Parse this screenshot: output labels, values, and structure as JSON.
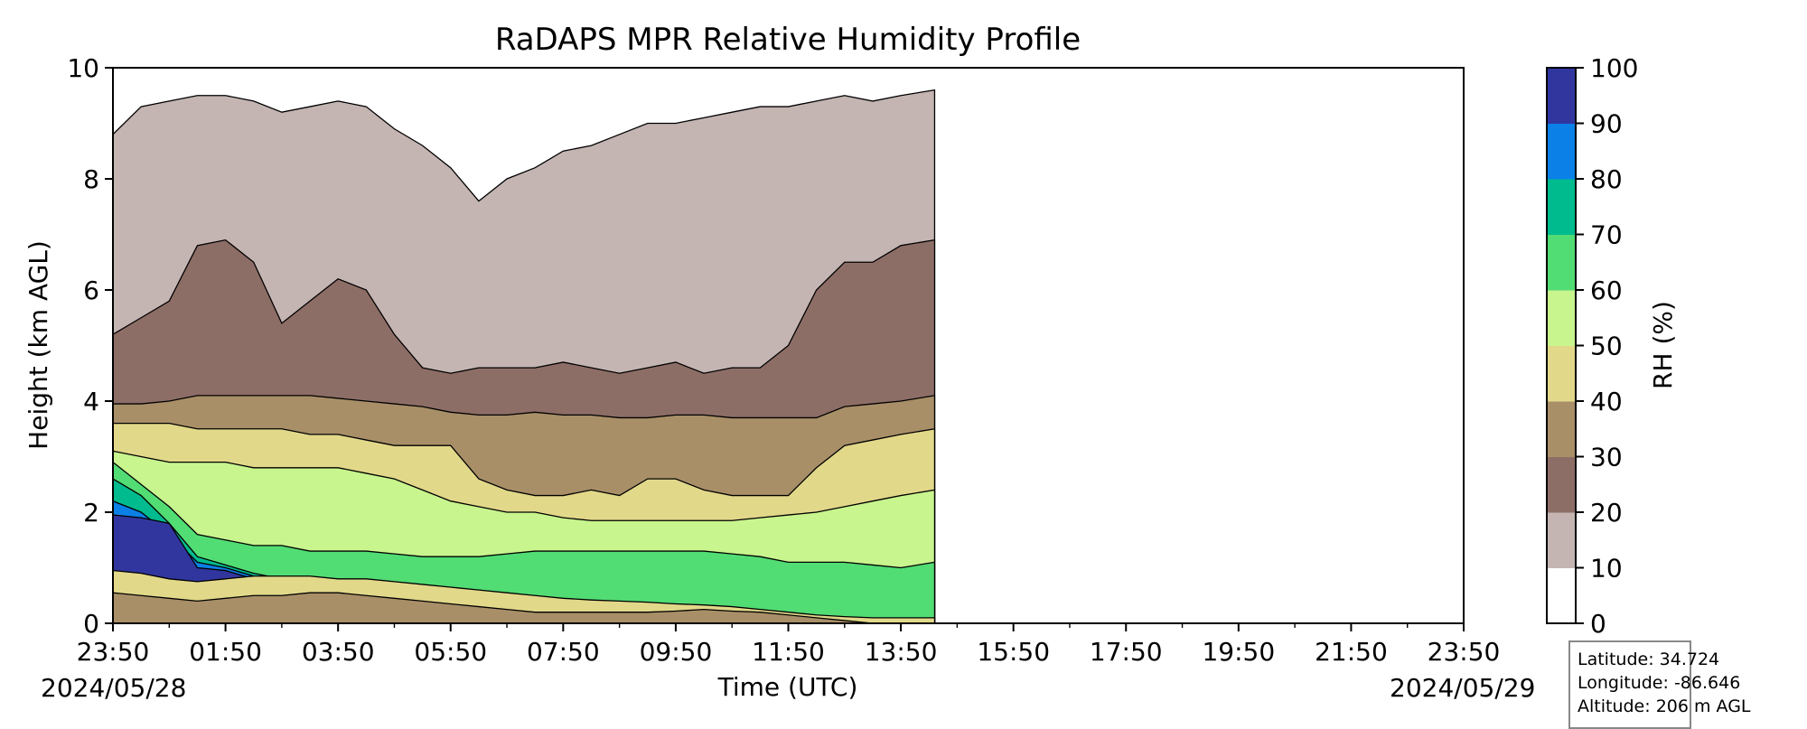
{
  "chart_data": {
    "type": "heatmap",
    "title": "RaDAPS MPR Relative Humidity Profile",
    "xlabel": "Time (UTC)",
    "ylabel": "Height (km AGL)",
    "x_tick_labels": [
      "23:50",
      "01:50",
      "03:50",
      "05:50",
      "07:50",
      "09:50",
      "11:50",
      "13:50",
      "15:50",
      "17:50",
      "19:50",
      "21:50",
      "23:50"
    ],
    "x_range_hours": [
      0,
      24
    ],
    "data_end_hour": 14.6,
    "date_start": "2024/05/28",
    "date_end": "2024/05/29",
    "ylim": [
      0,
      10
    ],
    "y_ticks": [
      0,
      2,
      4,
      6,
      8,
      10
    ],
    "colorbar": {
      "label": "RH (%)",
      "levels": [
        0,
        10,
        20,
        30,
        40,
        50,
        60,
        70,
        80,
        90,
        100
      ],
      "colors": [
        "#ffffff",
        "#c4b5b3",
        "#8d6e66",
        "#a88f68",
        "#e2d88a",
        "#c8f58e",
        "#52dc74",
        "#00bb8e",
        "#0b80e6",
        "#31369f"
      ]
    },
    "time_hours": [
      0,
      0.5,
      1,
      1.5,
      2,
      2.5,
      3,
      3.5,
      4,
      4.5,
      5,
      5.5,
      6,
      6.5,
      7,
      7.5,
      8,
      8.5,
      9,
      9.5,
      10,
      10.5,
      11,
      11.5,
      12,
      12.5,
      13,
      13.5,
      14,
      14.6
    ],
    "boundary_heights_km": {
      "10": [
        8.8,
        9.3,
        9.4,
        9.5,
        9.5,
        9.4,
        9.2,
        9.3,
        9.4,
        9.3,
        8.9,
        8.6,
        8.2,
        7.6,
        8.0,
        8.2,
        8.5,
        8.6,
        8.8,
        9.0,
        9.0,
        9.1,
        9.2,
        9.3,
        9.3,
        9.4,
        9.5,
        9.4,
        9.5,
        9.6
      ],
      "20": [
        5.2,
        5.5,
        5.8,
        6.8,
        6.9,
        6.5,
        5.4,
        5.8,
        6.2,
        6.0,
        5.2,
        4.6,
        4.5,
        4.6,
        4.6,
        4.6,
        4.7,
        4.6,
        4.5,
        4.6,
        4.7,
        4.5,
        4.6,
        4.6,
        5.0,
        6.0,
        6.5,
        6.5,
        6.8,
        6.9
      ],
      "30": [
        3.95,
        3.95,
        4.0,
        4.1,
        4.1,
        4.1,
        4.1,
        4.1,
        4.05,
        4.0,
        3.95,
        3.9,
        3.8,
        3.75,
        3.75,
        3.8,
        3.75,
        3.75,
        3.7,
        3.7,
        3.75,
        3.75,
        3.7,
        3.7,
        3.7,
        3.7,
        3.9,
        3.95,
        4.0,
        4.1
      ],
      "40": [
        3.6,
        3.6,
        3.6,
        3.5,
        3.5,
        3.5,
        3.5,
        3.4,
        3.4,
        3.3,
        3.2,
        3.2,
        3.2,
        2.6,
        2.4,
        2.3,
        2.3,
        2.4,
        2.3,
        2.6,
        2.6,
        2.4,
        2.3,
        2.3,
        2.3,
        2.8,
        3.2,
        3.3,
        3.4,
        3.5
      ],
      "50": [
        3.1,
        3.0,
        2.9,
        2.9,
        2.9,
        2.8,
        2.8,
        2.8,
        2.8,
        2.7,
        2.6,
        2.4,
        2.2,
        2.1,
        2.0,
        2.0,
        1.9,
        1.85,
        1.85,
        1.85,
        1.85,
        1.85,
        1.85,
        1.9,
        1.95,
        2.0,
        2.1,
        2.2,
        2.3,
        2.4
      ],
      "60": [
        2.9,
        2.5,
        2.1,
        1.6,
        1.5,
        1.4,
        1.4,
        1.3,
        1.3,
        1.3,
        1.25,
        1.2,
        1.2,
        1.2,
        1.25,
        1.3,
        1.3,
        1.3,
        1.3,
        1.3,
        1.3,
        1.3,
        1.25,
        1.2,
        1.1,
        1.1,
        1.1,
        1.05,
        1.0,
        1.1
      ],
      "70": [
        2.6,
        2.3,
        1.8,
        1.2,
        1.05,
        0.9,
        0.8,
        0.75,
        0.7,
        0.7,
        0.65,
        0.6,
        0.5,
        0.3,
        0.15,
        0.12,
        0.1,
        0.1,
        0.1,
        0.1,
        0.12,
        0.12,
        0.12,
        0.12,
        0.12,
        0.1,
        0.05,
        0.05,
        0.05,
        0.05
      ],
      "80": [
        2.2,
        2.0,
        1.6,
        1.1,
        1.0,
        0.85,
        0.7,
        0.6,
        0.6,
        0.6,
        0.55,
        0.5,
        0.4,
        0.2,
        0.0,
        0.0,
        0.0,
        0.0,
        0.0,
        0.0,
        0.0,
        0.0,
        0.0,
        0.0,
        0.0,
        0.0,
        0.0,
        0.0,
        0.0,
        0.0
      ],
      "90": [
        1.95,
        1.9,
        1.8,
        1.0,
        0.95,
        0.8,
        0.65,
        0.55,
        0.55,
        0.55,
        0.5,
        0.45,
        0.35,
        0.1,
        0.0,
        0.0,
        0.0,
        0.0,
        0.0,
        0.0,
        0.0,
        0.0,
        0.0,
        0.0,
        0.0,
        0.0,
        0.0,
        0.0,
        0.0,
        0.0
      ]
    },
    "surface_band_heights_km": {
      "40": [
        0.55,
        0.5,
        0.45,
        0.4,
        0.45,
        0.5,
        0.5,
        0.55,
        0.55,
        0.5,
        0.45,
        0.4,
        0.35,
        0.3,
        0.25,
        0.2,
        0.2,
        0.2,
        0.2,
        0.2,
        0.22,
        0.25,
        0.22,
        0.2,
        0.15,
        0.1,
        0.05,
        0.0,
        0.0,
        0.0
      ],
      "50": [
        0.95,
        0.9,
        0.8,
        0.75,
        0.8,
        0.85,
        0.85,
        0.85,
        0.8,
        0.8,
        0.75,
        0.7,
        0.65,
        0.6,
        0.55,
        0.5,
        0.45,
        0.42,
        0.4,
        0.38,
        0.35,
        0.33,
        0.3,
        0.25,
        0.2,
        0.15,
        0.12,
        0.1,
        0.1,
        0.1
      ]
    }
  },
  "station": {
    "latitude": "Latitude: 34.724",
    "longitude": "Longitude: -86.646",
    "altitude": "Altitude: 206 m AGL"
  }
}
